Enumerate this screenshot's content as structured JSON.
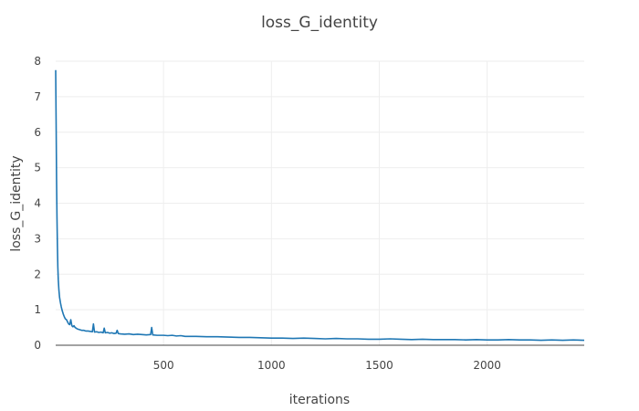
{
  "chart_data": {
    "type": "line",
    "title": "loss_G_identity",
    "xlabel": "iterations",
    "ylabel": "loss_G_identity",
    "xlim": [
      0,
      2450
    ],
    "ylim": [
      0,
      8
    ],
    "x_ticks": [
      500,
      1000,
      1500,
      2000
    ],
    "y_ticks": [
      0,
      1,
      2,
      3,
      4,
      5,
      6,
      7,
      8
    ],
    "grid": true,
    "legend": "none",
    "series": [
      {
        "color": "#1f77b4",
        "x": [
          0,
          2,
          4,
          6,
          8,
          10,
          12,
          15,
          18,
          22,
          26,
          30,
          35,
          40,
          45,
          50,
          55,
          60,
          65,
          70,
          75,
          80,
          85,
          90,
          95,
          100,
          110,
          120,
          130,
          140,
          150,
          160,
          170,
          175,
          180,
          190,
          200,
          210,
          220,
          225,
          230,
          240,
          250,
          260,
          270,
          280,
          285,
          290,
          300,
          320,
          340,
          360,
          380,
          400,
          420,
          440,
          445,
          450,
          470,
          500,
          520,
          540,
          560,
          580,
          600,
          650,
          700,
          750,
          800,
          850,
          900,
          950,
          1000,
          1050,
          1100,
          1150,
          1200,
          1250,
          1300,
          1350,
          1400,
          1450,
          1500,
          1550,
          1600,
          1650,
          1700,
          1750,
          1800,
          1850,
          1900,
          1950,
          2000,
          2050,
          2100,
          2150,
          2200,
          2250,
          2300,
          2350,
          2400,
          2450
        ],
        "y": [
          7.75,
          6.3,
          4.7,
          3.6,
          2.8,
          2.2,
          1.85,
          1.55,
          1.35,
          1.2,
          1.08,
          0.98,
          0.88,
          0.8,
          0.74,
          0.72,
          0.66,
          0.6,
          0.58,
          0.72,
          0.55,
          0.52,
          0.55,
          0.5,
          0.48,
          0.46,
          0.44,
          0.42,
          0.42,
          0.4,
          0.4,
          0.39,
          0.38,
          0.6,
          0.37,
          0.38,
          0.36,
          0.37,
          0.35,
          0.48,
          0.35,
          0.36,
          0.34,
          0.35,
          0.33,
          0.34,
          0.42,
          0.33,
          0.32,
          0.31,
          0.32,
          0.3,
          0.31,
          0.3,
          0.29,
          0.3,
          0.5,
          0.29,
          0.28,
          0.28,
          0.27,
          0.28,
          0.26,
          0.27,
          0.25,
          0.25,
          0.24,
          0.24,
          0.23,
          0.22,
          0.22,
          0.21,
          0.2,
          0.2,
          0.19,
          0.2,
          0.19,
          0.18,
          0.19,
          0.18,
          0.18,
          0.17,
          0.17,
          0.18,
          0.17,
          0.16,
          0.17,
          0.16,
          0.16,
          0.16,
          0.15,
          0.16,
          0.15,
          0.15,
          0.16,
          0.15,
          0.15,
          0.14,
          0.15,
          0.14,
          0.15,
          0.14
        ]
      }
    ]
  }
}
